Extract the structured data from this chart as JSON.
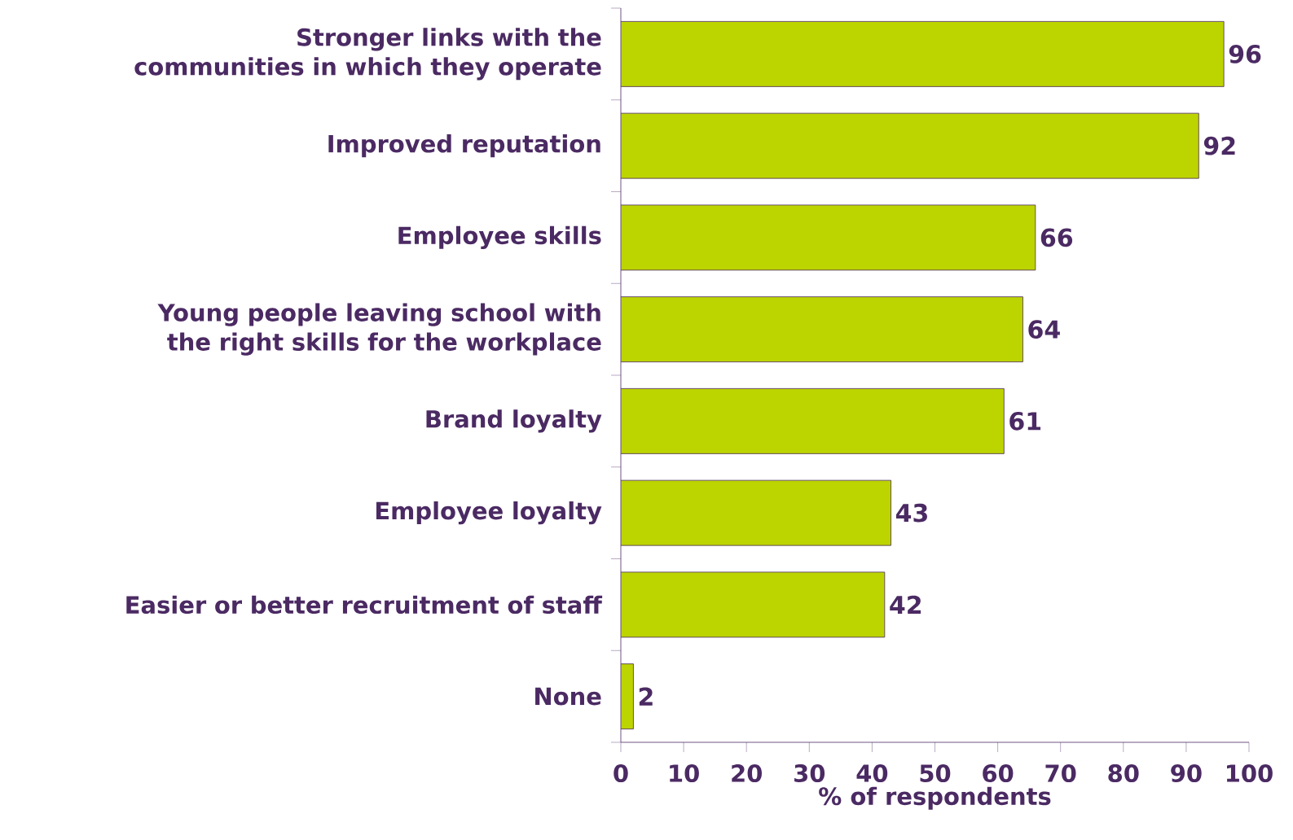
{
  "chart_data": {
    "type": "bar",
    "orientation": "horizontal",
    "xlabel": "% of respondents",
    "categories": [
      "Stronger links with the communities in which they operate",
      "Improved reputation",
      "Employee skills",
      "Young people leaving school with the right skills for the workplace",
      "Brand loyalty",
      "Employee loyalty",
      "Easier or better recruitment of staff",
      "None"
    ],
    "values": [
      96,
      92,
      66,
      64,
      61,
      43,
      42,
      2
    ],
    "color": "#bcd400",
    "xlim": [
      0,
      100
    ],
    "xticks": [
      0,
      10,
      20,
      30,
      40,
      50,
      60,
      70,
      80,
      90,
      100
    ],
    "data_labels": true
  }
}
